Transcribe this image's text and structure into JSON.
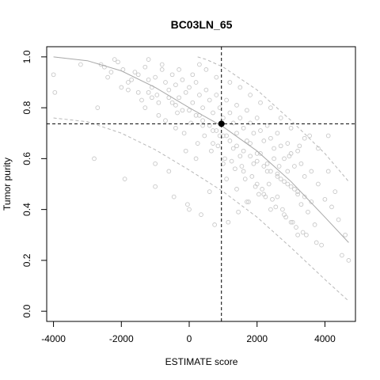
{
  "chart_data": {
    "type": "scatter",
    "title": "BC03LN_65",
    "xlabel": "ESTIMATE score",
    "ylabel": "Tumor purity",
    "xlim": [
      -4200,
      4900
    ],
    "ylim": [
      -0.04,
      1.04
    ],
    "xticks": [
      -4000,
      -2000,
      0,
      2000,
      4000
    ],
    "yticks": [
      0.0,
      0.2,
      0.4,
      0.6,
      0.8,
      1.0
    ],
    "grid": false,
    "legend": "none",
    "colors": {
      "points": "#c8c8c8",
      "fit": "#a8a8a8",
      "band": "#b8b8b8",
      "ref": "#000000"
    },
    "highlight": {
      "x": 950,
      "y": 0.737
    },
    "fit_curve": {
      "x": [
        -4000,
        -3000,
        -2000,
        -1000,
        0,
        1000,
        2000,
        3000,
        4000,
        4700
      ],
      "y": [
        1.0,
        0.985,
        0.945,
        0.88,
        0.8,
        0.725,
        0.63,
        0.51,
        0.37,
        0.27
      ]
    },
    "upper_band": {
      "x": [
        -4000,
        -3000,
        -2000,
        -1000,
        0,
        250,
        500,
        1000,
        2000,
        3000,
        4000,
        4700
      ],
      "y": [
        1.0,
        1.0,
        1.0,
        1.0,
        1.0,
        1.0,
        0.99,
        0.96,
        0.87,
        0.75,
        0.62,
        0.51
      ],
      "clip_above": 1.0
    },
    "lower_band": {
      "x": [
        -4000,
        -3000,
        -2000,
        -1000,
        0,
        1000,
        2000,
        3000,
        4000,
        4700
      ],
      "y": [
        0.76,
        0.745,
        0.7,
        0.635,
        0.555,
        0.47,
        0.37,
        0.25,
        0.125,
        0.04
      ]
    },
    "points": {
      "x": [
        -4000,
        -3960,
        -2500,
        -2400,
        -2100,
        -1950,
        -1800,
        -1500,
        -1300,
        -1200,
        -1100,
        -1000,
        -950,
        -800,
        -700,
        -600,
        -500,
        -400,
        -300,
        -200,
        -100,
        0,
        100,
        200,
        300,
        400,
        500,
        600,
        700,
        800,
        900,
        1000,
        1100,
        1200,
        1300,
        1400,
        1500,
        1600,
        1700,
        1800,
        1900,
        2000,
        2100,
        2200,
        2300,
        2400,
        2500,
        2600,
        2700,
        2800,
        2900,
        3000,
        3100,
        3200,
        3300,
        3400,
        3600,
        3800,
        4000,
        4200,
        4400,
        4600,
        4700,
        -2700,
        -1400,
        -1000,
        -900,
        -600,
        -400,
        -100,
        0,
        200,
        400,
        600,
        700,
        900,
        1000,
        1100,
        1300,
        1400,
        1500,
        1600,
        1700,
        1800,
        1900,
        2000,
        2100,
        2200,
        2300,
        2400,
        2500,
        2600,
        2700,
        2800,
        2900,
        3000,
        3100,
        3200,
        3300,
        3500,
        3700,
        -2600,
        -1600,
        -1200,
        -800,
        -300,
        100,
        300,
        500,
        800,
        1200,
        1500,
        1800,
        2100,
        2400,
        2700,
        3000,
        3400,
        3800,
        4100,
        4300,
        -2300,
        -1700,
        -1100,
        -500,
        -200,
        300,
        700,
        1100,
        1400,
        1700,
        2000,
        2300,
        2600,
        2900,
        3200,
        3600,
        -3200,
        -2200,
        -1800,
        -1300,
        -700,
        -150,
        250,
        650,
        1050,
        1350,
        1650,
        1950,
        2250,
        2550,
        2850,
        3150,
        3450,
        3900,
        -2000,
        -1500,
        -900,
        -350,
        50,
        450,
        850,
        1250,
        1550,
        1850,
        2150,
        2450,
        2750,
        3050,
        3350,
        3750,
        4500,
        -2800,
        -1900,
        -1000,
        -450,
        -50,
        350,
        750,
        1150,
        1450,
        1750,
        2050,
        2350,
        2650,
        2950,
        3250,
        3550,
        -600,
        0,
        400,
        800,
        1200,
        1600,
        2000,
        2400,
        2800,
        3200,
        -1200,
        -400,
        200,
        600,
        1000,
        1400,
        1800,
        2200,
        2600,
        3000,
        3400,
        4100
      ],
      "y": [
        0.93,
        0.86,
        0.96,
        0.92,
        0.98,
        0.95,
        0.9,
        0.93,
        0.96,
        0.91,
        0.88,
        0.92,
        0.85,
        0.95,
        0.9,
        0.87,
        0.93,
        0.89,
        0.84,
        0.91,
        0.86,
        0.88,
        0.82,
        0.9,
        0.85,
        0.8,
        0.87,
        0.83,
        0.78,
        0.85,
        0.8,
        0.76,
        0.83,
        0.78,
        0.74,
        0.81,
        0.76,
        0.72,
        0.79,
        0.74,
        0.7,
        0.76,
        0.71,
        0.67,
        0.73,
        0.68,
        0.64,
        0.7,
        0.65,
        0.6,
        0.66,
        0.62,
        0.57,
        0.63,
        0.58,
        0.53,
        0.55,
        0.5,
        0.44,
        0.41,
        0.36,
        0.3,
        0.2,
        0.8,
        0.83,
        0.58,
        0.77,
        0.55,
        0.72,
        0.63,
        0.4,
        0.6,
        0.73,
        0.47,
        0.66,
        0.69,
        0.58,
        0.52,
        0.64,
        0.48,
        0.61,
        0.55,
        0.43,
        0.66,
        0.58,
        0.5,
        0.62,
        0.46,
        0.55,
        0.4,
        0.6,
        0.45,
        0.52,
        0.38,
        0.55,
        0.35,
        0.48,
        0.3,
        0.42,
        0.39,
        0.34,
        0.97,
        0.94,
        0.99,
        0.97,
        0.95,
        0.93,
        0.97,
        0.95,
        0.92,
        0.9,
        0.88,
        0.85,
        0.82,
        0.8,
        0.76,
        0.72,
        0.68,
        0.64,
        0.55,
        0.47,
        0.94,
        0.91,
        0.84,
        0.82,
        0.79,
        0.77,
        0.71,
        0.69,
        0.7,
        0.67,
        0.62,
        0.58,
        0.54,
        0.5,
        0.46,
        0.43,
        0.97,
        0.99,
        0.87,
        0.8,
        0.75,
        0.7,
        0.66,
        0.63,
        0.6,
        0.56,
        0.52,
        0.49,
        0.45,
        0.41,
        0.37,
        0.33,
        0.3,
        0.26,
        0.88,
        0.86,
        0.82,
        0.78,
        0.74,
        0.69,
        0.65,
        0.59,
        0.57,
        0.53,
        0.48,
        0.44,
        0.4,
        0.35,
        0.31,
        0.27,
        0.22,
        0.6,
        0.52,
        0.49,
        0.45,
        0.42,
        0.38,
        0.34,
        0.35,
        0.39,
        0.43,
        0.46,
        0.5,
        0.57,
        0.61,
        0.65,
        0.69,
        0.84,
        0.79,
        0.75,
        0.71,
        0.67,
        0.63,
        0.59,
        0.55,
        0.51,
        0.47,
        0.86,
        0.81,
        0.77,
        0.73,
        0.69,
        0.65,
        0.61,
        0.57,
        0.53,
        0.49,
        0.45,
        0.69
      ]
    }
  }
}
